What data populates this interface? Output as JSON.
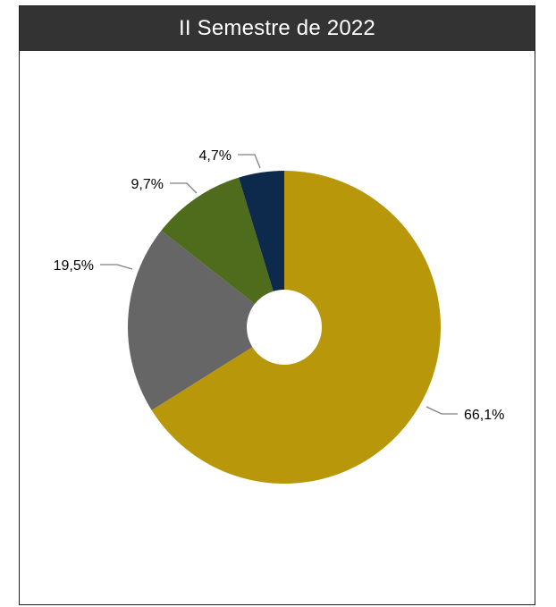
{
  "chart_data": {
    "type": "pie",
    "donut": true,
    "title": "II Semestre de 2022",
    "slices": [
      {
        "label": "66,1%",
        "value": 66.1,
        "color": "#B8970A"
      },
      {
        "label": "19,5%",
        "value": 19.5,
        "color": "#666666"
      },
      {
        "label": "9,7%",
        "value": 9.7,
        "color": "#4F6B1C"
      },
      {
        "label": "4,7%",
        "value": 4.7,
        "color": "#0D2A4D"
      }
    ],
    "start_angle_deg": 0,
    "direction": "clockwise",
    "legend": "none",
    "colors": {
      "header_background": "#333333",
      "header_text": "#FFFFFF",
      "leader_line": "#808080"
    }
  }
}
